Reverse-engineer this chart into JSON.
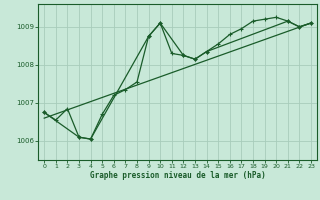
{
  "title": "Graphe pression niveau de la mer (hPa)",
  "background_color": "#c8e8d8",
  "grid_color": "#a8ccbb",
  "line_color": "#1a5c2a",
  "xlim": [
    -0.5,
    23.5
  ],
  "ylim": [
    1005.5,
    1009.6
  ],
  "yticks": [
    1006,
    1007,
    1008,
    1009
  ],
  "xticks": [
    0,
    1,
    2,
    3,
    4,
    5,
    6,
    7,
    8,
    9,
    10,
    11,
    12,
    13,
    14,
    15,
    16,
    17,
    18,
    19,
    20,
    21,
    22,
    23
  ],
  "series1_x": [
    0,
    1,
    2,
    3,
    4,
    5,
    6,
    7,
    8,
    9,
    10,
    11,
    12,
    13,
    14,
    15,
    16,
    17,
    18,
    19,
    20,
    21,
    22,
    23
  ],
  "series1_y": [
    1006.75,
    1006.55,
    1006.85,
    1006.1,
    1006.05,
    1006.7,
    1007.2,
    1007.35,
    1007.55,
    1008.75,
    1009.1,
    1008.3,
    1008.25,
    1008.15,
    1008.35,
    1008.55,
    1008.8,
    1008.95,
    1009.15,
    1009.2,
    1009.25,
    1009.15,
    1009.0,
    1009.1
  ],
  "series2_x": [
    0,
    3,
    4,
    9,
    10,
    12,
    13,
    14,
    21,
    22,
    23
  ],
  "series2_y": [
    1006.75,
    1006.1,
    1006.05,
    1008.75,
    1009.1,
    1008.25,
    1008.15,
    1008.35,
    1009.15,
    1009.0,
    1009.1
  ],
  "series3_x": [
    0,
    23
  ],
  "series3_y": [
    1006.6,
    1009.1
  ]
}
